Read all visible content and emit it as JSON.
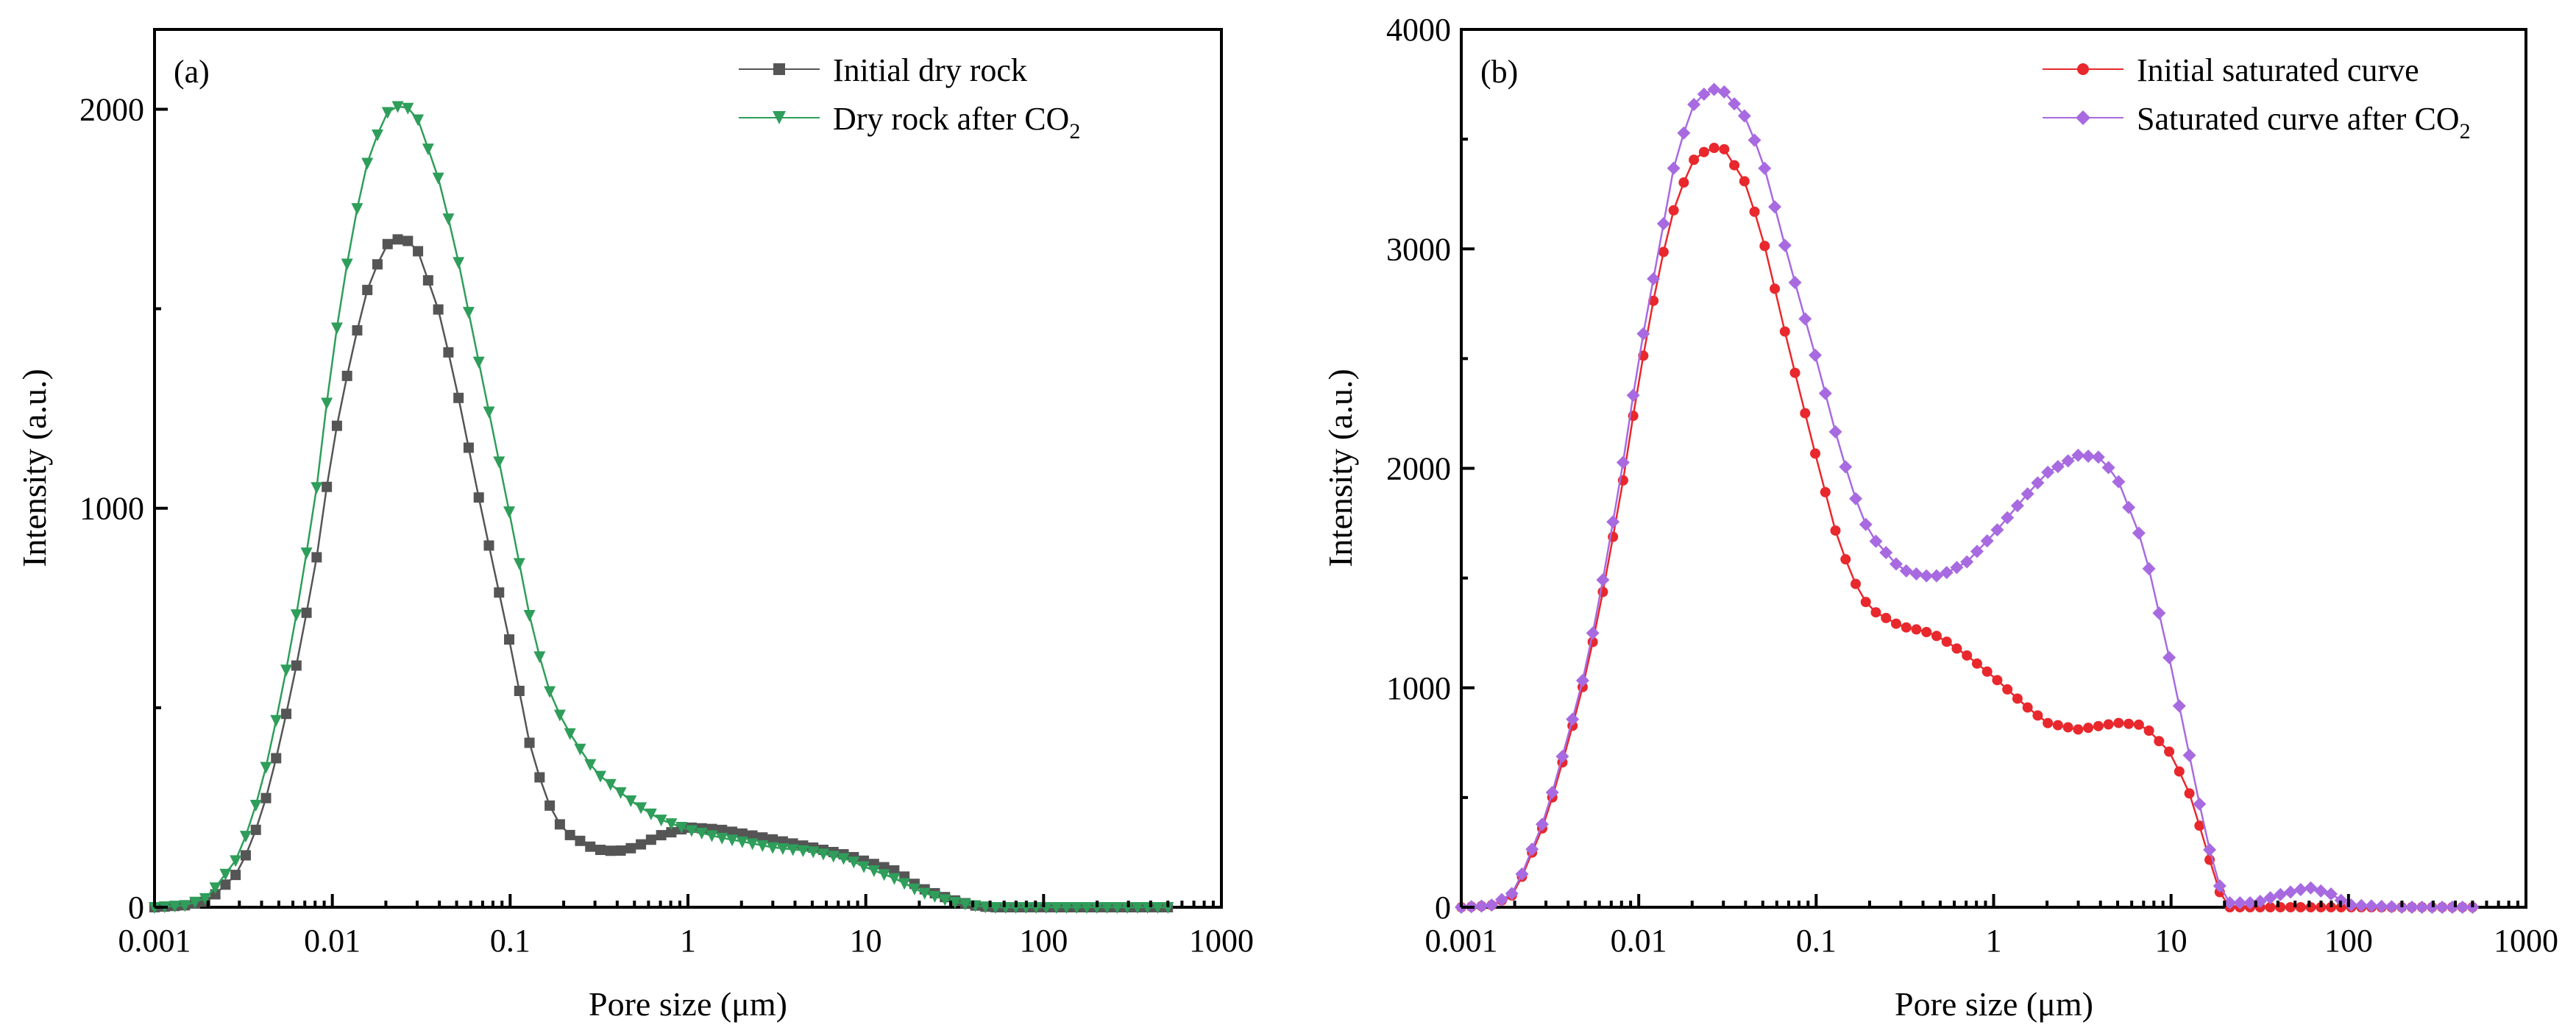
{
  "chart_data": [
    {
      "type": "line",
      "panel_label": "(a)",
      "xlabel": "Pore size (μm)",
      "ylabel": "Intensity (a.u.)",
      "xscale": "log",
      "xlim": [
        0.001,
        1000
      ],
      "ylim": [
        0,
        2200
      ],
      "x_ticks": [
        0.001,
        0.01,
        0.1,
        1,
        10,
        100,
        1000
      ],
      "x_tick_labels": [
        "0.001",
        "0.01",
        "0.1",
        "1",
        "10",
        "100",
        "1000"
      ],
      "y_ticks": [
        0,
        1000,
        2000
      ],
      "y_tick_labels": [
        "0",
        "1000",
        "2000"
      ],
      "legend_position": "top-right",
      "series": [
        {
          "name": "Initial dry rock",
          "color": "#555555",
          "marker": "square",
          "points": [
            [
              0.001,
              0
            ],
            [
              0.0015,
              5
            ],
            [
              0.002,
              15
            ],
            [
              0.003,
              90
            ],
            [
              0.004,
              230
            ],
            [
              0.005,
              400
            ],
            [
              0.006,
              560
            ],
            [
              0.008,
              850
            ],
            [
              0.01,
              1150
            ],
            [
              0.013,
              1400
            ],
            [
              0.016,
              1560
            ],
            [
              0.02,
              1660
            ],
            [
              0.025,
              1680
            ],
            [
              0.03,
              1650
            ],
            [
              0.04,
              1490
            ],
            [
              0.05,
              1300
            ],
            [
              0.07,
              980
            ],
            [
              0.1,
              660
            ],
            [
              0.13,
              400
            ],
            [
              0.16,
              270
            ],
            [
              0.2,
              190
            ],
            [
              0.3,
              145
            ],
            [
              0.4,
              140
            ],
            [
              0.5,
              150
            ],
            [
              0.7,
              180
            ],
            [
              1,
              200
            ],
            [
              1.5,
              195
            ],
            [
              2,
              185
            ],
            [
              3,
              170
            ],
            [
              5,
              150
            ],
            [
              8,
              130
            ],
            [
              10,
              115
            ],
            [
              15,
              90
            ],
            [
              20,
              50
            ],
            [
              30,
              20
            ],
            [
              40,
              5
            ],
            [
              50,
              0
            ],
            [
              100,
              0
            ],
            [
              200,
              0
            ],
            [
              500,
              0
            ]
          ]
        },
        {
          "name": "Dry rock after CO",
          "name_subscript": "2",
          "color": "#2e9e5a",
          "marker": "triangle-down",
          "points": [
            [
              0.001,
              0
            ],
            [
              0.0015,
              5
            ],
            [
              0.002,
              25
            ],
            [
              0.003,
              130
            ],
            [
              0.004,
              300
            ],
            [
              0.005,
              500
            ],
            [
              0.006,
              680
            ],
            [
              0.008,
              1020
            ],
            [
              0.01,
              1380
            ],
            [
              0.013,
              1700
            ],
            [
              0.016,
              1880
            ],
            [
              0.02,
              1990
            ],
            [
              0.025,
              2015
            ],
            [
              0.03,
              1980
            ],
            [
              0.04,
              1820
            ],
            [
              0.05,
              1640
            ],
            [
              0.07,
              1320
            ],
            [
              0.1,
              980
            ],
            [
              0.13,
              720
            ],
            [
              0.16,
              560
            ],
            [
              0.2,
              460
            ],
            [
              0.3,
              340
            ],
            [
              0.5,
              260
            ],
            [
              0.7,
              220
            ],
            [
              1,
              195
            ],
            [
              1.5,
              175
            ],
            [
              2,
              165
            ],
            [
              3,
              150
            ],
            [
              5,
              140
            ],
            [
              8,
              120
            ],
            [
              10,
              100
            ],
            [
              15,
              70
            ],
            [
              20,
              40
            ],
            [
              30,
              15
            ],
            [
              40,
              5
            ],
            [
              50,
              0
            ],
            [
              100,
              0
            ],
            [
              200,
              0
            ],
            [
              500,
              0
            ]
          ]
        }
      ]
    },
    {
      "type": "line",
      "panel_label": "(b)",
      "xlabel": "Pore size (μm)",
      "ylabel": "Intensity (a.u.)",
      "xscale": "log",
      "xlim": [
        0.001,
        1000
      ],
      "ylim": [
        0,
        4000
      ],
      "x_ticks": [
        0.001,
        0.01,
        0.1,
        1,
        10,
        100,
        1000
      ],
      "x_tick_labels": [
        "0.001",
        "0.01",
        "0.1",
        "1",
        "10",
        "100",
        "1000"
      ],
      "y_ticks": [
        0,
        1000,
        2000,
        3000,
        4000
      ],
      "y_tick_labels": [
        "0",
        "1000",
        "2000",
        "3000",
        "4000"
      ],
      "legend_position": "top-right",
      "series": [
        {
          "name": "Initial saturated curve",
          "color": "#e8282d",
          "marker": "circle",
          "points": [
            [
              0.001,
              0
            ],
            [
              0.0013,
              5
            ],
            [
              0.0015,
              10
            ],
            [
              0.002,
              60
            ],
            [
              0.003,
              400
            ],
            [
              0.004,
              750
            ],
            [
              0.005,
              1050
            ],
            [
              0.006,
              1350
            ],
            [
              0.008,
              1900
            ],
            [
              0.01,
              2400
            ],
            [
              0.013,
              2900
            ],
            [
              0.016,
              3200
            ],
            [
              0.02,
              3400
            ],
            [
              0.025,
              3460
            ],
            [
              0.03,
              3460
            ],
            [
              0.04,
              3300
            ],
            [
              0.05,
              3050
            ],
            [
              0.07,
              2550
            ],
            [
              0.1,
              2050
            ],
            [
              0.13,
              1700
            ],
            [
              0.16,
              1500
            ],
            [
              0.2,
              1360
            ],
            [
              0.3,
              1280
            ],
            [
              0.4,
              1260
            ],
            [
              0.5,
              1230
            ],
            [
              0.7,
              1150
            ],
            [
              1,
              1050
            ],
            [
              1.5,
              920
            ],
            [
              2,
              840
            ],
            [
              3,
              810
            ],
            [
              5,
              840
            ],
            [
              7,
              830
            ],
            [
              10,
              700
            ],
            [
              13,
              500
            ],
            [
              16,
              250
            ],
            [
              20,
              0
            ],
            [
              30,
              0
            ],
            [
              50,
              0
            ],
            [
              100,
              0
            ],
            [
              200,
              0
            ],
            [
              500,
              0
            ]
          ]
        },
        {
          "name": "Saturated curve after CO",
          "name_subscript": "2",
          "color": "#a86ae0",
          "marker": "diamond",
          "points": [
            [
              0.001,
              0
            ],
            [
              0.0013,
              5
            ],
            [
              0.0015,
              10
            ],
            [
              0.002,
              70
            ],
            [
              0.003,
              420
            ],
            [
              0.004,
              780
            ],
            [
              0.005,
              1080
            ],
            [
              0.006,
              1400
            ],
            [
              0.008,
              1980
            ],
            [
              0.01,
              2500
            ],
            [
              0.013,
              3000
            ],
            [
              0.016,
              3400
            ],
            [
              0.02,
              3650
            ],
            [
              0.025,
              3730
            ],
            [
              0.03,
              3720
            ],
            [
              0.04,
              3600
            ],
            [
              0.05,
              3400
            ],
            [
              0.07,
              2950
            ],
            [
              0.1,
              2500
            ],
            [
              0.13,
              2150
            ],
            [
              0.16,
              1900
            ],
            [
              0.2,
              1700
            ],
            [
              0.3,
              1540
            ],
            [
              0.4,
              1510
            ],
            [
              0.5,
              1510
            ],
            [
              0.7,
              1570
            ],
            [
              1,
              1700
            ],
            [
              1.5,
              1870
            ],
            [
              2,
              1980
            ],
            [
              3,
              2060
            ],
            [
              4,
              2050
            ],
            [
              5,
              1950
            ],
            [
              7,
              1650
            ],
            [
              10,
              1100
            ],
            [
              13,
              650
            ],
            [
              16,
              300
            ],
            [
              20,
              20
            ],
            [
              30,
              20
            ],
            [
              40,
              55
            ],
            [
              60,
              90
            ],
            [
              80,
              60
            ],
            [
              100,
              10
            ],
            [
              200,
              0
            ],
            [
              500,
              0
            ]
          ]
        }
      ]
    }
  ]
}
